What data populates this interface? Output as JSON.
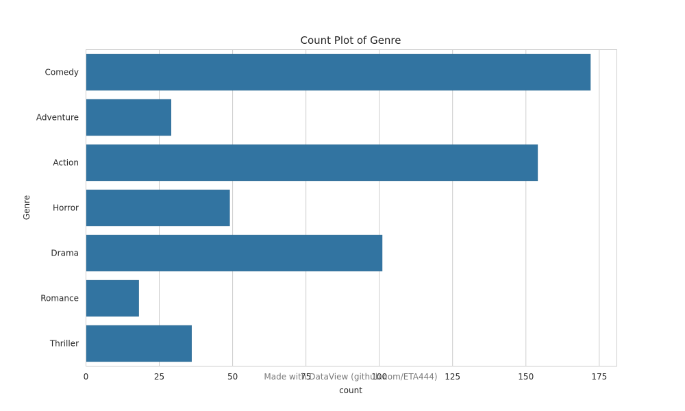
{
  "chart_data": {
    "type": "bar",
    "orientation": "horizontal",
    "title": "Count Plot of Genre",
    "xlabel": "count",
    "ylabel": "Genre",
    "categories": [
      "Comedy",
      "Adventure",
      "Action",
      "Horror",
      "Drama",
      "Romance",
      "Thriller"
    ],
    "values": [
      172,
      29,
      154,
      49,
      101,
      18,
      36
    ],
    "xlim": [
      0,
      181
    ],
    "xticks": [
      0,
      25,
      50,
      75,
      100,
      125,
      150,
      175
    ],
    "grid": "vertical",
    "bar_color": "#3274a1",
    "grid_color": "#cccccc"
  },
  "watermark": "Made with DataView (github.com/ETA444)"
}
